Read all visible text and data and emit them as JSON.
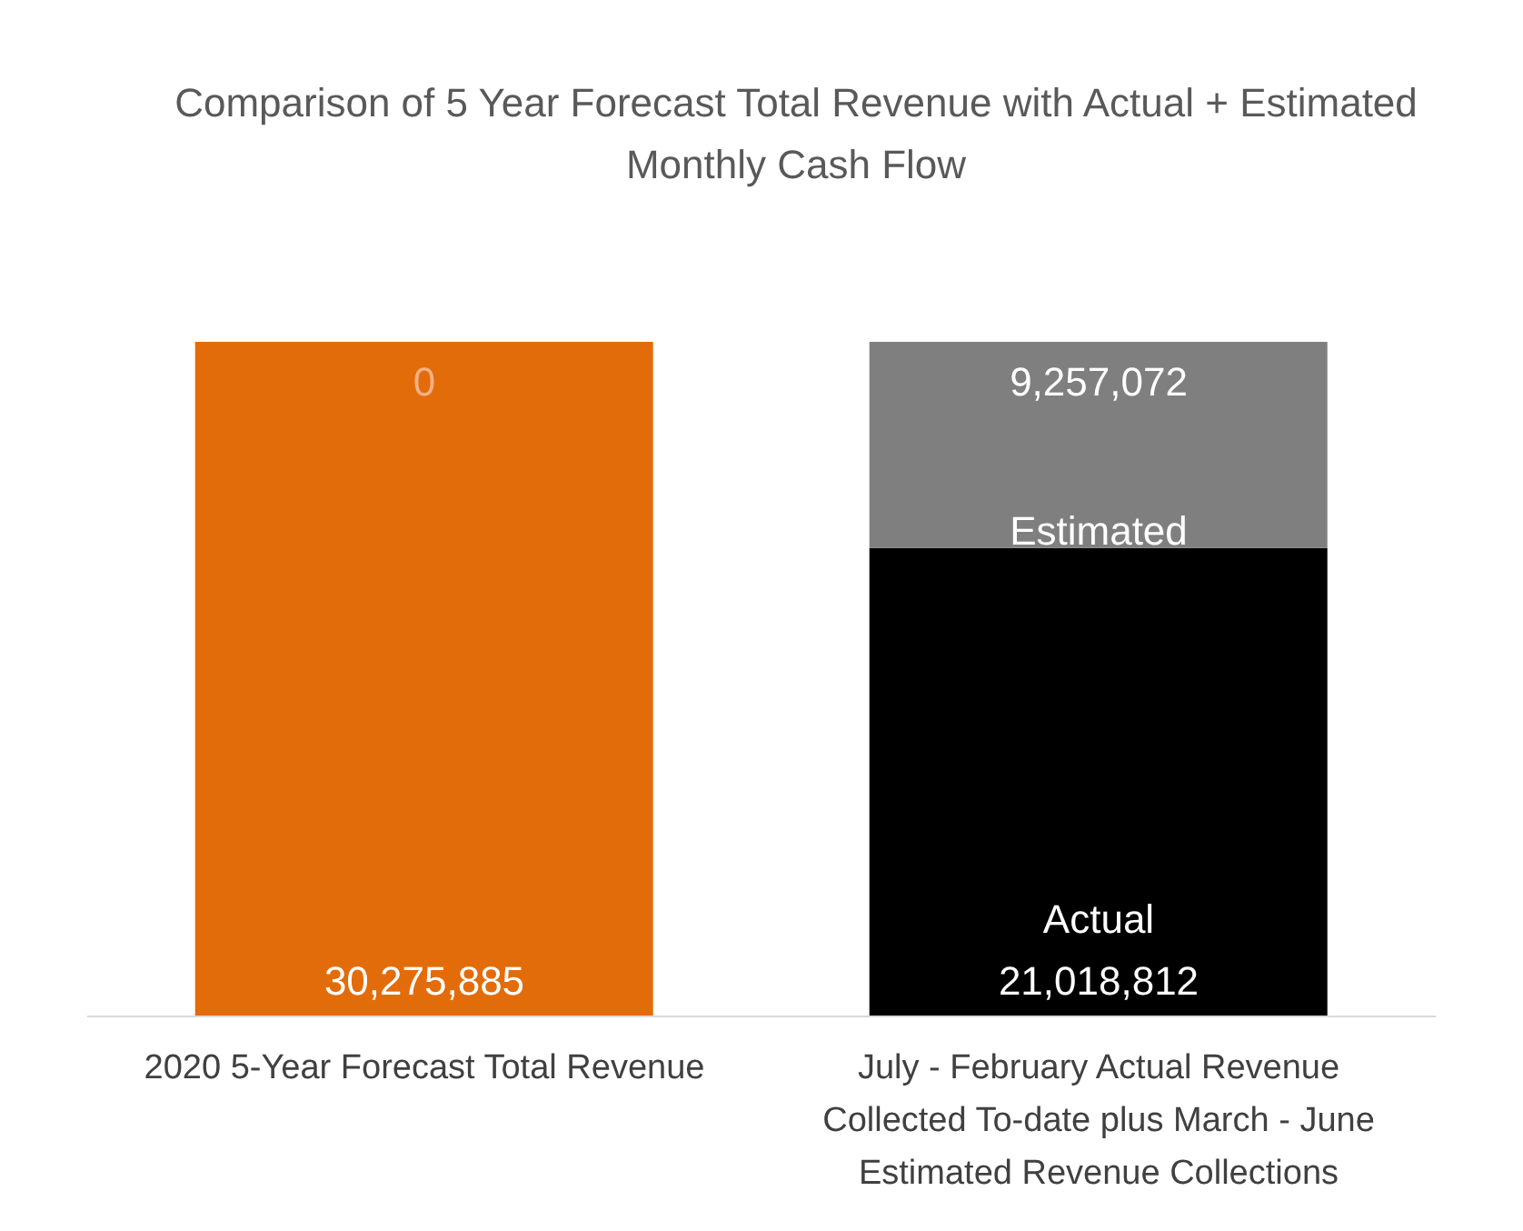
{
  "chart_data": {
    "type": "bar",
    "stacked": true,
    "title": "Comparison of 5 Year Forecast Total Revenue with Actual + Estimated Monthly Cash Flow",
    "categories": [
      "2020 5-Year Forecast Total Revenue",
      "July - February Actual Revenue Collected To-date plus March - June Estimated Revenue Collections"
    ],
    "series": [
      {
        "name": "Actual",
        "colors": [
          "#e36c0a",
          "#000000"
        ],
        "values": [
          30275885,
          21018812
        ],
        "value_labels": [
          "30,275,885",
          "21,018,812"
        ]
      },
      {
        "name": "Estimated",
        "colors": [
          "#e36c0a",
          "#7f7f7f"
        ],
        "values": [
          0,
          9257072
        ],
        "value_labels": [
          "0",
          "9,257,072"
        ]
      }
    ],
    "grid": false,
    "legend": false
  }
}
